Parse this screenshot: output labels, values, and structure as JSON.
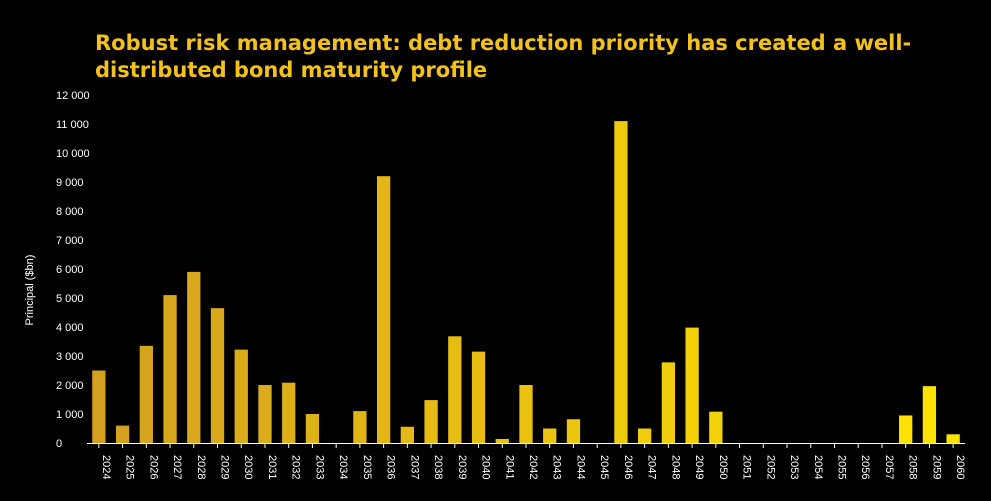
{
  "chart_data": {
    "type": "bar",
    "title": "Robust risk management: debt reduction priority has created a well-distributed bond maturity profile",
    "ylabel": "Principal ($bn)",
    "xlabel": "",
    "ylim": [
      0,
      12000
    ],
    "yticks": [
      0,
      1000,
      2000,
      3000,
      4000,
      5000,
      6000,
      7000,
      8000,
      9000,
      10000,
      11000,
      12000
    ],
    "ytick_labels": [
      "0",
      "1 000",
      "2 000",
      "3 000",
      "4 000",
      "5 000",
      "6 000",
      "7 000",
      "8 000",
      "9 000",
      "10 000",
      "11 000",
      "12 000"
    ],
    "categories": [
      "2024",
      "2025",
      "2026",
      "2027",
      "2028",
      "2029",
      "2030",
      "2031",
      "2032",
      "2033",
      "2034",
      "2035",
      "2036",
      "2037",
      "2038",
      "2039",
      "2040",
      "2041",
      "2042",
      "2043",
      "2044",
      "2045",
      "2046",
      "2047",
      "2048",
      "2049",
      "2050",
      "2051",
      "2052",
      "2053",
      "2054",
      "2055",
      "2056",
      "2057",
      "2058",
      "2059",
      "2060"
    ],
    "values": [
      2500,
      600,
      3350,
      5100,
      5900,
      4650,
      3220,
      2000,
      2080,
      1000,
      0,
      1100,
      9200,
      560,
      1480,
      3680,
      3150,
      140,
      2000,
      500,
      820,
      0,
      11100,
      500,
      2780,
      3980,
      1080,
      0,
      0,
      0,
      0,
      0,
      0,
      0,
      950,
      1960,
      300
    ],
    "bar_color_start": "#D4A020",
    "bar_color_end": "#FFE500",
    "grid": false,
    "legend": "none"
  }
}
